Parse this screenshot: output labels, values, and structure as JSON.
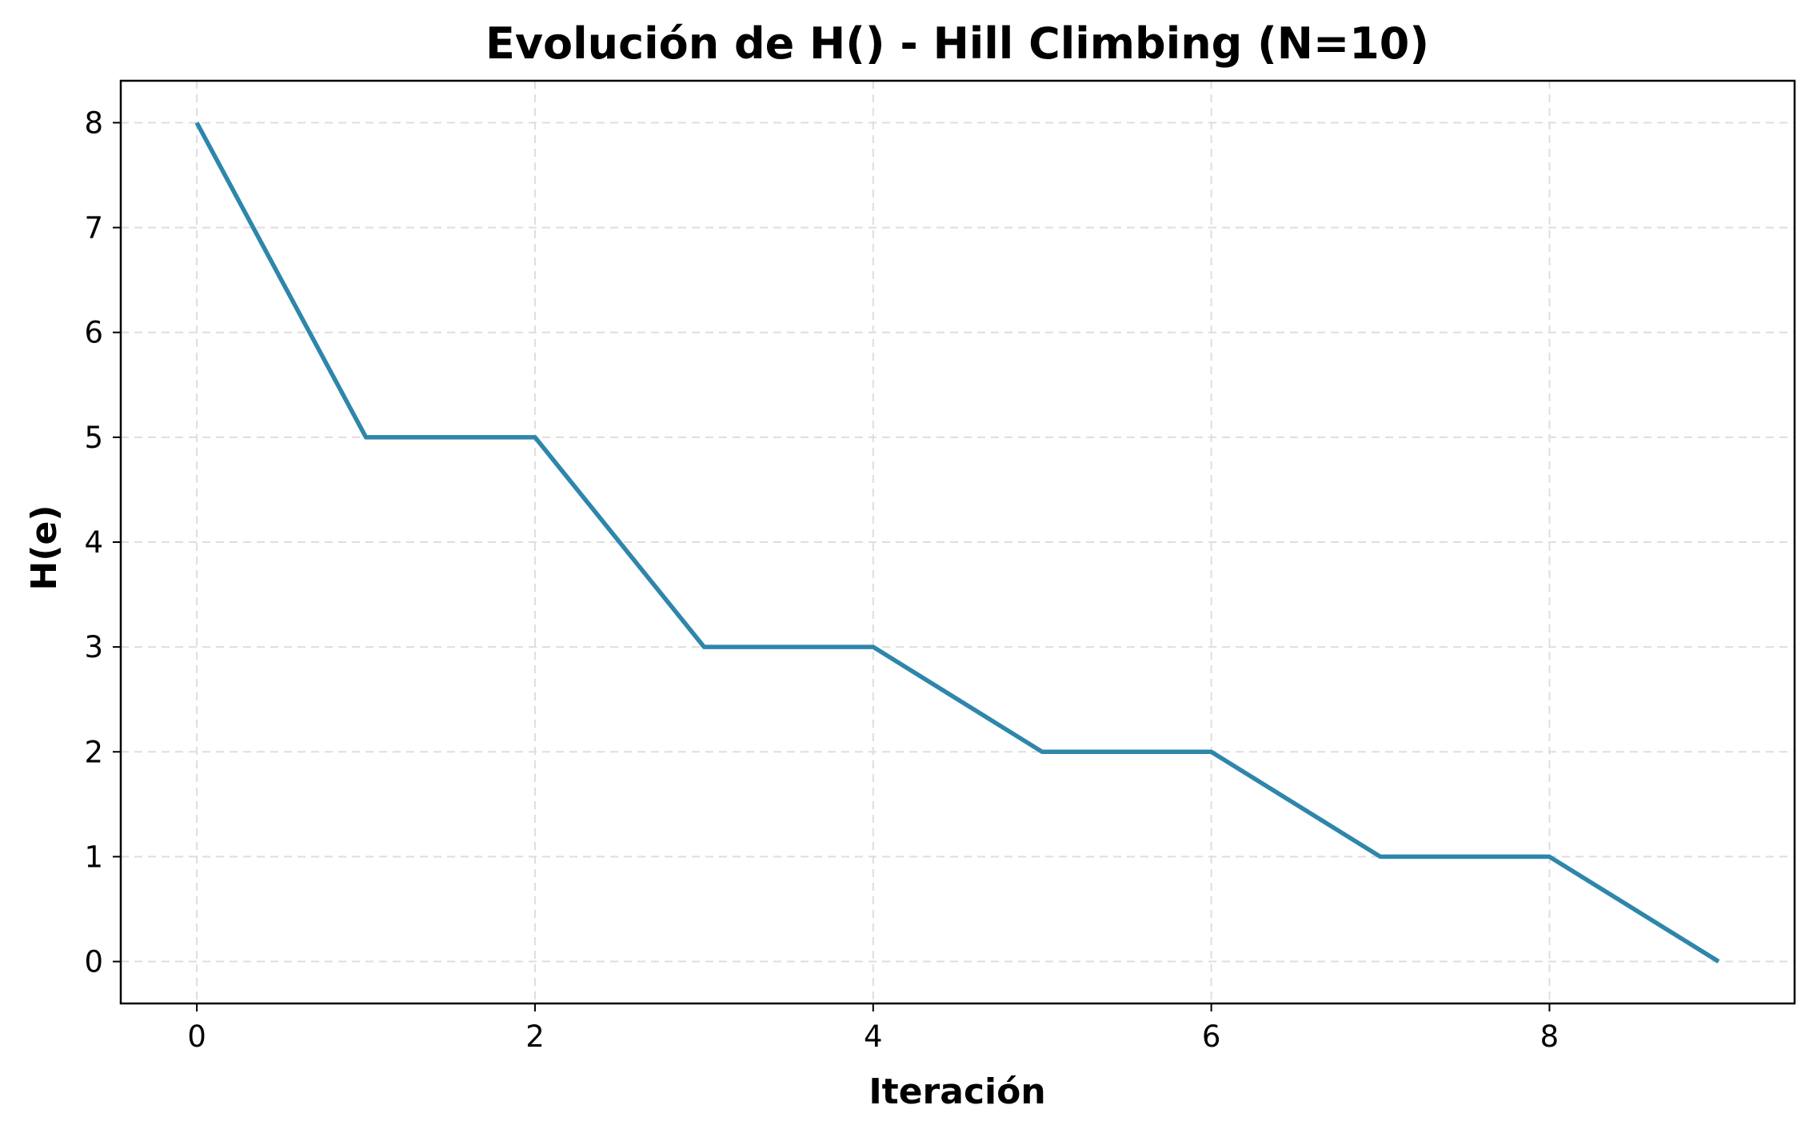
{
  "chart_data": {
    "type": "line",
    "title": "Evolución de H() - Hill Climbing (N=10)",
    "xlabel": "Iteración",
    "ylabel": "H(e)",
    "x": [
      0,
      1,
      2,
      3,
      4,
      5,
      6,
      7,
      8,
      9
    ],
    "series": [
      {
        "values": [
          8,
          5,
          5,
          3,
          3,
          2,
          2,
          1,
          1,
          0
        ],
        "color": "#2e86ab"
      }
    ],
    "xlim": [
      -0.45,
      9.45
    ],
    "ylim": [
      -0.4,
      8.4
    ],
    "xticks": [
      0,
      2,
      4,
      6,
      8
    ],
    "yticks": [
      0,
      1,
      2,
      3,
      4,
      5,
      6,
      7,
      8
    ],
    "grid": true,
    "grid_style": "dashed",
    "legend": false
  }
}
